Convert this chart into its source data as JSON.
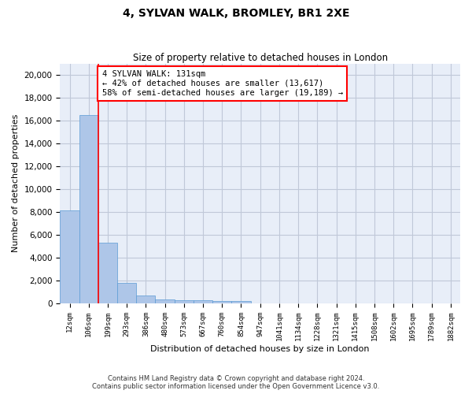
{
  "title": "4, SYLVAN WALK, BROMLEY, BR1 2XE",
  "subtitle": "Size of property relative to detached houses in London",
  "xlabel": "Distribution of detached houses by size in London",
  "ylabel": "Number of detached properties",
  "bar_color": "#aec6e8",
  "bar_edge_color": "#5b9bd5",
  "grid_color": "#c0c8d8",
  "background_color": "#e8eef8",
  "categories": [
    "12sqm",
    "106sqm",
    "199sqm",
    "293sqm",
    "386sqm",
    "480sqm",
    "573sqm",
    "667sqm",
    "760sqm",
    "854sqm",
    "947sqm",
    "1041sqm",
    "1134sqm",
    "1228sqm",
    "1321sqm",
    "1415sqm",
    "1508sqm",
    "1602sqm",
    "1695sqm",
    "1789sqm",
    "1882sqm"
  ],
  "values": [
    8100,
    16500,
    5300,
    1750,
    650,
    350,
    270,
    230,
    200,
    170,
    0,
    0,
    0,
    0,
    0,
    0,
    0,
    0,
    0,
    0,
    0
  ],
  "ylim": [
    0,
    21000
  ],
  "yticks": [
    0,
    2000,
    4000,
    6000,
    8000,
    10000,
    12000,
    14000,
    16000,
    18000,
    20000
  ],
  "vline_x": 1.5,
  "annotation_text": "4 SYLVAN WALK: 131sqm\n← 42% of detached houses are smaller (13,617)\n58% of semi-detached houses are larger (19,189) →",
  "annotation_box_color": "white",
  "annotation_box_edge": "red",
  "vline_color": "red",
  "footer_line1": "Contains HM Land Registry data © Crown copyright and database right 2024.",
  "footer_line2": "Contains public sector information licensed under the Open Government Licence v3.0."
}
